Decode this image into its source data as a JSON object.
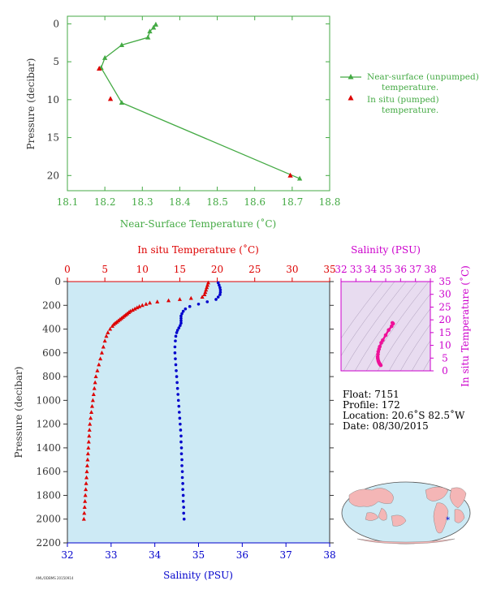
{
  "chart_data": [
    {
      "type": "line",
      "panel": "near-surface",
      "xlabel": "Near-Surface Temperature (˚C)",
      "ylabel": "Pressure (decibar)",
      "xlim": [
        18.1,
        18.8
      ],
      "ylim": [
        22,
        -1
      ],
      "xticks": [
        "18.1",
        "18.2",
        "18.3",
        "18.4",
        "18.5",
        "18.6",
        "18.7",
        "18.8"
      ],
      "yticks": [
        "0",
        "5",
        "10",
        "15",
        "20"
      ],
      "grid": false,
      "legend_placement": "right",
      "series": [
        {
          "name": "Near-surface (unpumped) temperature.",
          "color": "#44aa44",
          "marker": "triangle",
          "points": [
            [
              18.336,
              0.1
            ],
            [
              18.33,
              0.5
            ],
            [
              18.32,
              1.0
            ],
            [
              18.315,
              1.8
            ],
            [
              18.245,
              2.8
            ],
            [
              18.2,
              4.5
            ],
            [
              18.19,
              5.8
            ],
            [
              18.245,
              10.4
            ],
            [
              18.72,
              20.4
            ]
          ]
        },
        {
          "name": "In situ (pumped) temperature.",
          "color": "#dd0000",
          "marker": "triangle",
          "points": [
            [
              18.185,
              5.9
            ],
            [
              18.215,
              9.9
            ],
            [
              18.695,
              20.0
            ]
          ]
        }
      ]
    },
    {
      "type": "scatter",
      "panel": "profile",
      "ylabel": "Pressure (decibar)",
      "xlabel_top": "In situ Temperature (˚C)",
      "xlabel_bottom": "Salinity (PSU)",
      "ylim": [
        2200,
        0
      ],
      "yticks": [
        "0",
        "200",
        "400",
        "600",
        "800",
        "1000",
        "1200",
        "1400",
        "1600",
        "1800",
        "2000",
        "2200"
      ],
      "xlim_top": [
        0,
        35
      ],
      "xticks_top": [
        "0",
        "5",
        "10",
        "15",
        "20",
        "25",
        "30",
        "35"
      ],
      "xlim_bottom": [
        32,
        38
      ],
      "xticks_bottom": [
        "32",
        "33",
        "34",
        "35",
        "36",
        "37",
        "38"
      ],
      "background": "#cdeaf5",
      "series": [
        {
          "name": "temperature",
          "color": "#dd0000",
          "marker": "triangle",
          "points": [
            [
              18.8,
              10
            ],
            [
              18.7,
              30
            ],
            [
              18.6,
              50
            ],
            [
              18.5,
              70
            ],
            [
              18.4,
              90
            ],
            [
              18.3,
              110
            ],
            [
              18.0,
              130
            ],
            [
              16.5,
              140
            ],
            [
              15.0,
              150
            ],
            [
              13.5,
              160
            ],
            [
              12.0,
              170
            ],
            [
              11.0,
              180
            ],
            [
              10.5,
              190
            ],
            [
              10.0,
              200
            ],
            [
              9.6,
              210
            ],
            [
              9.3,
              220
            ],
            [
              9.0,
              230
            ],
            [
              8.7,
              240
            ],
            [
              8.4,
              250
            ],
            [
              8.2,
              260
            ],
            [
              8.0,
              270
            ],
            [
              7.8,
              280
            ],
            [
              7.6,
              290
            ],
            [
              7.4,
              300
            ],
            [
              7.2,
              310
            ],
            [
              7.0,
              320
            ],
            [
              6.8,
              330
            ],
            [
              6.6,
              340
            ],
            [
              6.4,
              350
            ],
            [
              6.2,
              360
            ],
            [
              6.0,
              375
            ],
            [
              5.7,
              400
            ],
            [
              5.4,
              430
            ],
            [
              5.2,
              460
            ],
            [
              5.0,
              500
            ],
            [
              4.8,
              550
            ],
            [
              4.6,
              600
            ],
            [
              4.4,
              650
            ],
            [
              4.2,
              700
            ],
            [
              4.0,
              750
            ],
            [
              3.8,
              800
            ],
            [
              3.7,
              850
            ],
            [
              3.6,
              900
            ],
            [
              3.5,
              950
            ],
            [
              3.4,
              1000
            ],
            [
              3.3,
              1050
            ],
            [
              3.2,
              1100
            ],
            [
              3.1,
              1150
            ],
            [
              3.0,
              1200
            ],
            [
              2.95,
              1250
            ],
            [
              2.9,
              1300
            ],
            [
              2.85,
              1350
            ],
            [
              2.8,
              1400
            ],
            [
              2.75,
              1450
            ],
            [
              2.7,
              1500
            ],
            [
              2.65,
              1550
            ],
            [
              2.6,
              1600
            ],
            [
              2.55,
              1650
            ],
            [
              2.5,
              1700
            ],
            [
              2.45,
              1750
            ],
            [
              2.4,
              1800
            ],
            [
              2.35,
              1850
            ],
            [
              2.3,
              1900
            ],
            [
              2.25,
              1950
            ],
            [
              2.2,
              2000
            ]
          ]
        },
        {
          "name": "salinity",
          "color": "#0000cc",
          "marker": "dot",
          "points": [
            [
              35.45,
              10
            ],
            [
              35.47,
              30
            ],
            [
              35.49,
              50
            ],
            [
              35.5,
              70
            ],
            [
              35.5,
              90
            ],
            [
              35.49,
              110
            ],
            [
              35.45,
              130
            ],
            [
              35.4,
              150
            ],
            [
              35.2,
              170
            ],
            [
              35.0,
              190
            ],
            [
              34.8,
              210
            ],
            [
              34.7,
              230
            ],
            [
              34.65,
              250
            ],
            [
              34.62,
              270
            ],
            [
              34.6,
              290
            ],
            [
              34.6,
              310
            ],
            [
              34.6,
              330
            ],
            [
              34.6,
              350
            ],
            [
              34.58,
              370
            ],
            [
              34.55,
              390
            ],
            [
              34.52,
              410
            ],
            [
              34.5,
              430
            ],
            [
              34.48,
              460
            ],
            [
              34.47,
              500
            ],
            [
              34.46,
              550
            ],
            [
              34.46,
              600
            ],
            [
              34.47,
              650
            ],
            [
              34.48,
              700
            ],
            [
              34.49,
              750
            ],
            [
              34.5,
              800
            ],
            [
              34.51,
              850
            ],
            [
              34.52,
              900
            ],
            [
              34.53,
              950
            ],
            [
              34.54,
              1000
            ],
            [
              34.55,
              1050
            ],
            [
              34.56,
              1100
            ],
            [
              34.57,
              1150
            ],
            [
              34.58,
              1200
            ],
            [
              34.59,
              1250
            ],
            [
              34.6,
              1300
            ],
            [
              34.6,
              1350
            ],
            [
              34.61,
              1400
            ],
            [
              34.61,
              1450
            ],
            [
              34.62,
              1500
            ],
            [
              34.62,
              1550
            ],
            [
              34.63,
              1600
            ],
            [
              34.63,
              1650
            ],
            [
              34.64,
              1700
            ],
            [
              34.64,
              1750
            ],
            [
              34.65,
              1800
            ],
            [
              34.65,
              1850
            ],
            [
              34.66,
              1900
            ],
            [
              34.66,
              1950
            ],
            [
              34.67,
              2000
            ]
          ]
        }
      ]
    },
    {
      "type": "line",
      "panel": "t-s",
      "xlabel": "Salinity (PSU)",
      "ylabel": "In situ Temperature (˚C)",
      "xlim": [
        32,
        38
      ],
      "xticks": [
        "32",
        "33",
        "34",
        "35",
        "36",
        "37",
        "38"
      ],
      "ylim": [
        0,
        35
      ],
      "yticks": [
        "0",
        "5",
        "10",
        "15",
        "20",
        "25",
        "30",
        "35"
      ],
      "background": "#e8dcf0",
      "series": [
        {
          "name": "profile",
          "color": "#ee1199",
          "marker": "dot",
          "points": [
            [
              35.45,
              18.8
            ],
            [
              35.5,
              18.5
            ],
            [
              35.4,
              17.5
            ],
            [
              35.2,
              16.0
            ],
            [
              35.0,
              14.0
            ],
            [
              34.8,
              12.0
            ],
            [
              34.7,
              11.0
            ],
            [
              34.6,
              9.5
            ],
            [
              34.55,
              8.5
            ],
            [
              34.5,
              7.5
            ],
            [
              34.48,
              6.5
            ],
            [
              34.46,
              5.5
            ],
            [
              34.47,
              4.8
            ],
            [
              34.5,
              4.0
            ],
            [
              34.53,
              3.5
            ],
            [
              34.57,
              3.0
            ],
            [
              34.6,
              2.7
            ],
            [
              34.63,
              2.5
            ],
            [
              34.67,
              2.2
            ]
          ]
        }
      ]
    }
  ],
  "info": {
    "float": "Float:  7151",
    "profile": "Profile:  172",
    "location": "Location:  20.6˚S  82.5˚W",
    "date": "Date:  08/30/2015"
  },
  "map": {
    "marker": "*",
    "marker_lon": -82.5,
    "marker_lat": -20.6
  },
  "credit": "AML/ODBMS 20150914",
  "colors": {
    "green": "#44aa44",
    "red": "#dd0000",
    "blue": "#0000cc",
    "magenta": "#cc00cc",
    "profile_bg": "#cdeaf5",
    "ts_bg": "#e8dcf0",
    "ocean": "#cdeaf5",
    "land": "#f4b6b6"
  }
}
